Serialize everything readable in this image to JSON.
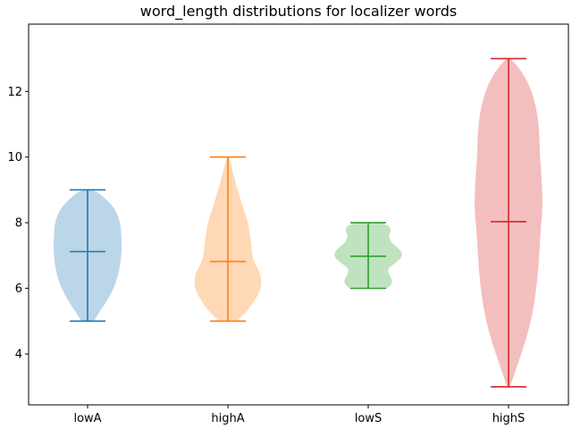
{
  "chart_data": {
    "type": "violin",
    "title": "word_length distributions for localizer words",
    "xlabel": "",
    "ylabel": "",
    "categories": [
      "lowA",
      "highA",
      "lowS",
      "highS"
    ],
    "ylim": [
      2.45,
      14.05
    ],
    "yticks": [
      4,
      6,
      8,
      10,
      12
    ],
    "ytick_labels": [
      "4",
      "6",
      "8",
      "10",
      "12"
    ],
    "grid": false,
    "series": [
      {
        "category": "lowA",
        "color": "#1f77b4",
        "min": 5,
        "max": 9,
        "mean": 7.12,
        "density": [
          [
            5.0,
            0.18
          ],
          [
            5.3,
            0.35
          ],
          [
            5.6,
            0.55
          ],
          [
            6.0,
            0.75
          ],
          [
            6.4,
            0.88
          ],
          [
            6.8,
            0.95
          ],
          [
            7.2,
            0.98
          ],
          [
            7.6,
            0.97
          ],
          [
            8.0,
            0.94
          ],
          [
            8.4,
            0.8
          ],
          [
            8.7,
            0.55
          ],
          [
            9.0,
            0.22
          ]
        ]
      },
      {
        "category": "highA",
        "color": "#ff7f0e",
        "min": 5,
        "max": 10,
        "mean": 6.82,
        "density": [
          [
            5.0,
            0.25
          ],
          [
            5.3,
            0.55
          ],
          [
            5.7,
            0.82
          ],
          [
            6.1,
            0.98
          ],
          [
            6.5,
            0.92
          ],
          [
            6.9,
            0.7
          ],
          [
            7.3,
            0.68
          ],
          [
            7.7,
            0.62
          ],
          [
            8.0,
            0.58
          ],
          [
            8.5,
            0.42
          ],
          [
            9.0,
            0.28
          ],
          [
            9.5,
            0.15
          ],
          [
            10.0,
            0.03
          ]
        ]
      },
      {
        "category": "lowS",
        "color": "#2ca02c",
        "min": 6,
        "max": 8,
        "mean": 6.98,
        "density": [
          [
            6.0,
            0.55
          ],
          [
            6.2,
            0.72
          ],
          [
            6.4,
            0.6
          ],
          [
            6.6,
            0.55
          ],
          [
            6.8,
            0.82
          ],
          [
            7.0,
            1.0
          ],
          [
            7.2,
            0.9
          ],
          [
            7.4,
            0.65
          ],
          [
            7.6,
            0.58
          ],
          [
            7.8,
            0.68
          ],
          [
            8.0,
            0.5
          ]
        ]
      },
      {
        "category": "highS",
        "color": "#d62728",
        "min": 3,
        "max": 13,
        "mean": 8.03,
        "density": [
          [
            3.0,
            0.04
          ],
          [
            3.8,
            0.3
          ],
          [
            4.6,
            0.55
          ],
          [
            5.4,
            0.72
          ],
          [
            6.2,
            0.82
          ],
          [
            7.0,
            0.88
          ],
          [
            7.8,
            0.92
          ],
          [
            8.4,
            0.98
          ],
          [
            9.2,
            0.96
          ],
          [
            10.0,
            0.9
          ],
          [
            10.8,
            0.88
          ],
          [
            11.5,
            0.8
          ],
          [
            12.2,
            0.6
          ],
          [
            12.7,
            0.32
          ],
          [
            13.0,
            0.06
          ]
        ]
      }
    ]
  }
}
